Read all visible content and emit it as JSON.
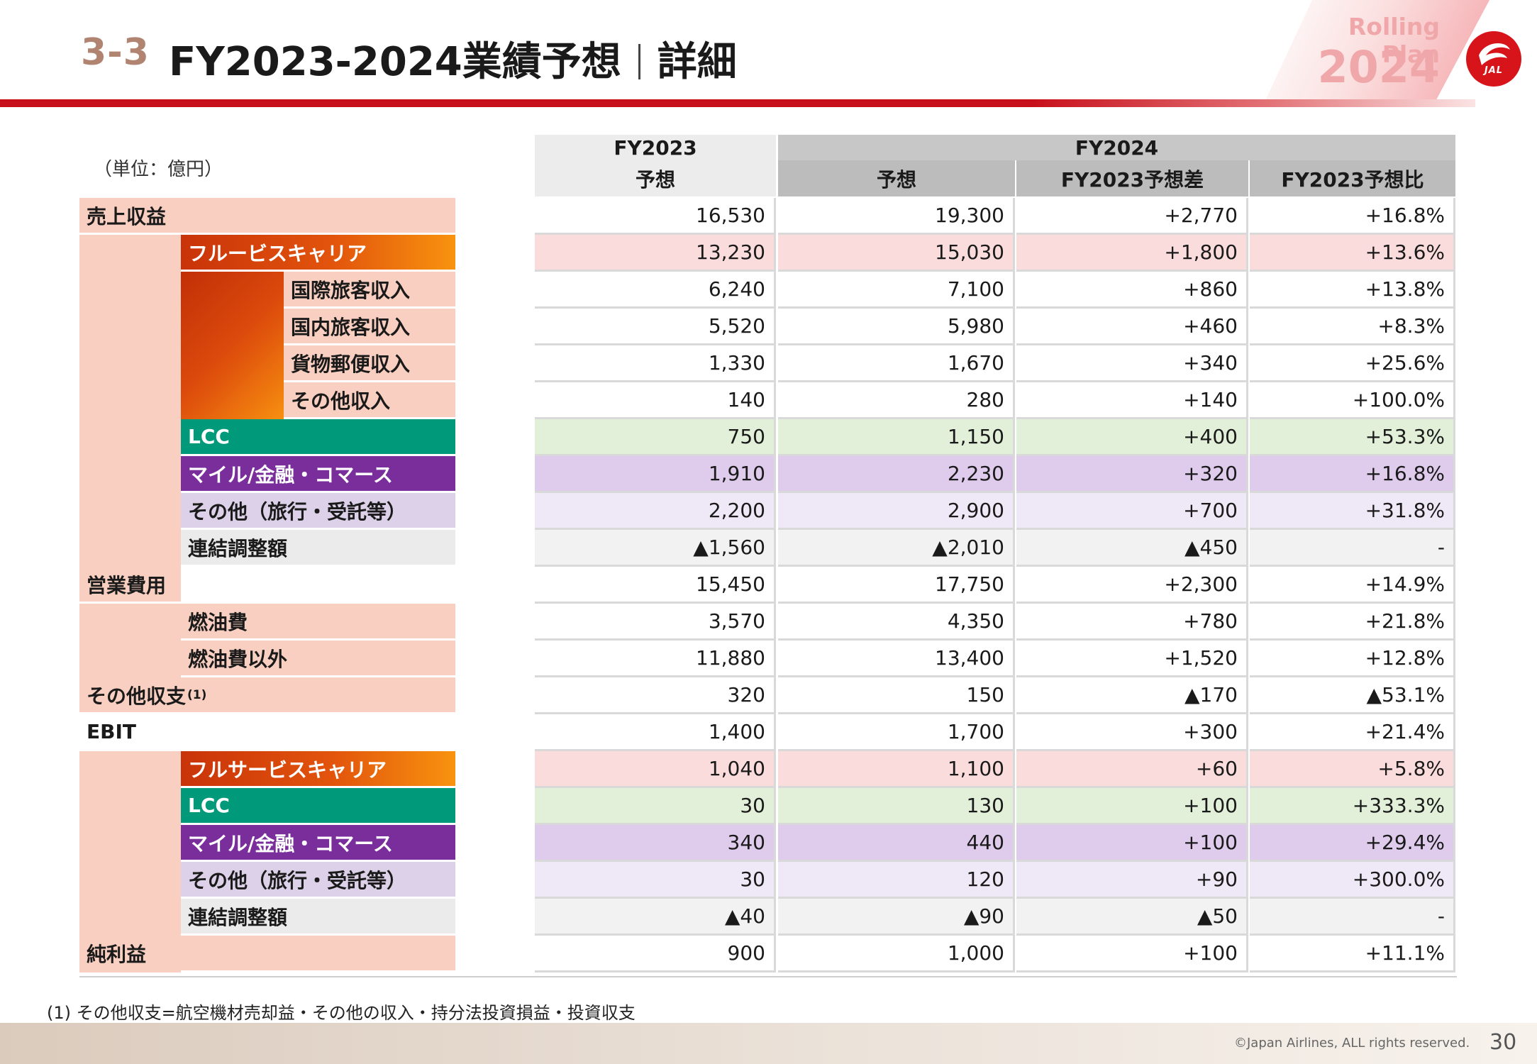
{
  "header": {
    "section": "3-3",
    "title_main": "FY2023-2024業績予想",
    "title_sub": "詳細",
    "badge_label": "Rolling Plan",
    "badge_year": "2024",
    "logo_text": "JAL"
  },
  "table": {
    "unit": "（単位：億円）",
    "col_headers": {
      "fy2023": "FY2023",
      "fy2023_sub": "予想",
      "fy2024": "FY2024",
      "fy2024_forecast": "予想",
      "fy2024_diff": "FY2023予想差",
      "fy2024_ratio": "FY2023予想比"
    },
    "rows": [
      {
        "label": "売上収益",
        "values": [
          "16,530",
          "19,300",
          "+2,770",
          "+16.8%"
        ]
      },
      {
        "label": "フルービスキャリア",
        "values": [
          "13,230",
          "15,030",
          "+1,800",
          "+13.6%"
        ]
      },
      {
        "label": "国際旅客収入",
        "values": [
          "6,240",
          "7,100",
          "+860",
          "+13.8%"
        ]
      },
      {
        "label": "国内旅客収入",
        "values": [
          "5,520",
          "5,980",
          "+460",
          "+8.3%"
        ]
      },
      {
        "label": "貨物郵便収入",
        "values": [
          "1,330",
          "1,670",
          "+340",
          "+25.6%"
        ]
      },
      {
        "label": "その他収入",
        "values": [
          "140",
          "280",
          "+140",
          "+100.0%"
        ]
      },
      {
        "label": "LCC",
        "values": [
          "750",
          "1,150",
          "+400",
          "+53.3%"
        ]
      },
      {
        "label": "マイル/金融・コマース",
        "values": [
          "1,910",
          "2,230",
          "+320",
          "+16.8%"
        ]
      },
      {
        "label": "その他（旅行・受託等）",
        "values": [
          "2,200",
          "2,900",
          "+700",
          "+31.8%"
        ]
      },
      {
        "label": "連結調整額",
        "values": [
          "▲1,560",
          "▲2,010",
          "▲450",
          "-"
        ]
      },
      {
        "label": "営業費用",
        "values": [
          "15,450",
          "17,750",
          "+2,300",
          "+14.9%"
        ]
      },
      {
        "label": "燃油費",
        "values": [
          "3,570",
          "4,350",
          "+780",
          "+21.8%"
        ]
      },
      {
        "label": "燃油費以外",
        "values": [
          "11,880",
          "13,400",
          "+1,520",
          "+12.8%"
        ]
      },
      {
        "label": "その他収支",
        "note_mark": "(1)",
        "values": [
          "320",
          "150",
          "▲170",
          "▲53.1%"
        ]
      },
      {
        "label": "EBIT",
        "values": [
          "1,400",
          "1,700",
          "+300",
          "+21.4%"
        ]
      },
      {
        "label": "フルサービスキャリア",
        "values": [
          "1,040",
          "1,100",
          "+60",
          "+5.8%"
        ]
      },
      {
        "label": "LCC",
        "values": [
          "30",
          "130",
          "+100",
          "+333.3%"
        ]
      },
      {
        "label": "マイル/金融・コマース",
        "values": [
          "340",
          "440",
          "+100",
          "+29.4%"
        ]
      },
      {
        "label": "その他（旅行・受託等）",
        "values": [
          "30",
          "120",
          "+90",
          "+300.0%"
        ]
      },
      {
        "label": "連結調整額",
        "values": [
          "▲40",
          "▲90",
          "▲50",
          "-"
        ]
      },
      {
        "label": "純利益",
        "values": [
          "900",
          "1,000",
          "+100",
          "+11.1%"
        ]
      }
    ]
  },
  "footer": {
    "footnote": "(1) その他収支=航空機材売却益・その他の収入・持分法投資損益・投資収支",
    "copyright": "©Japan Airlines, ALL rights reserved.",
    "page": "30"
  },
  "colors": {
    "brand_red": "#c8101c",
    "salmon": "#f8cfc0",
    "fsc_gradient": "#cf3a0a→#f7920f",
    "lcc_green": "#009a7b",
    "mile_purple": "#7a2e9c",
    "other_lavender": "#dcd1e8",
    "adjust_gray": "#ebebeb"
  }
}
